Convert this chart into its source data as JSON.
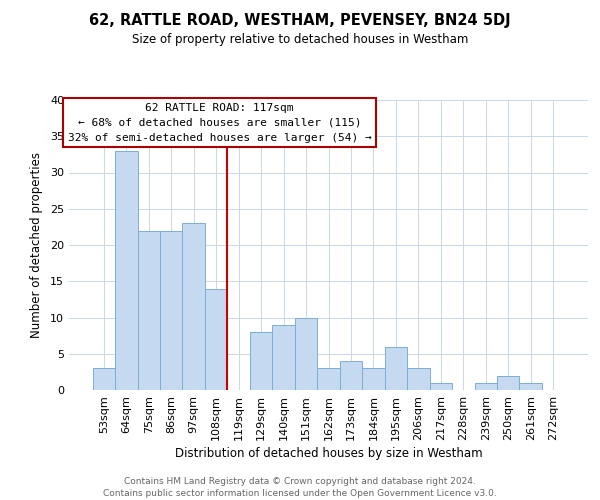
{
  "title": "62, RATTLE ROAD, WESTHAM, PEVENSEY, BN24 5DJ",
  "subtitle": "Size of property relative to detached houses in Westham",
  "xlabel": "Distribution of detached houses by size in Westham",
  "ylabel": "Number of detached properties",
  "footer_line1": "Contains HM Land Registry data © Crown copyright and database right 2024.",
  "footer_line2": "Contains public sector information licensed under the Open Government Licence v3.0.",
  "bar_labels": [
    "53sqm",
    "64sqm",
    "75sqm",
    "86sqm",
    "97sqm",
    "108sqm",
    "119sqm",
    "129sqm",
    "140sqm",
    "151sqm",
    "162sqm",
    "173sqm",
    "184sqm",
    "195sqm",
    "206sqm",
    "217sqm",
    "228sqm",
    "239sqm",
    "250sqm",
    "261sqm",
    "272sqm"
  ],
  "bar_values": [
    3,
    33,
    22,
    22,
    23,
    14,
    0,
    8,
    9,
    10,
    3,
    4,
    3,
    6,
    3,
    1,
    0,
    1,
    2,
    1,
    0
  ],
  "bar_color": "#c5d9f1",
  "bar_edge_color": "#7bafd4",
  "property_label": "62 RATTLE ROAD: 117sqm",
  "annotation_line1": "← 68% of detached houses are smaller (115)",
  "annotation_line2": "32% of semi-detached houses are larger (54) →",
  "vline_color": "#cc0000",
  "vline_x_index": 6,
  "ylim": [
    0,
    40
  ],
  "yticks": [
    0,
    5,
    10,
    15,
    20,
    25,
    30,
    35,
    40
  ],
  "annotation_box_color": "#ffffff",
  "annotation_box_edge": "#aa0000",
  "background_color": "#ffffff",
  "grid_color": "#c8d8e8"
}
